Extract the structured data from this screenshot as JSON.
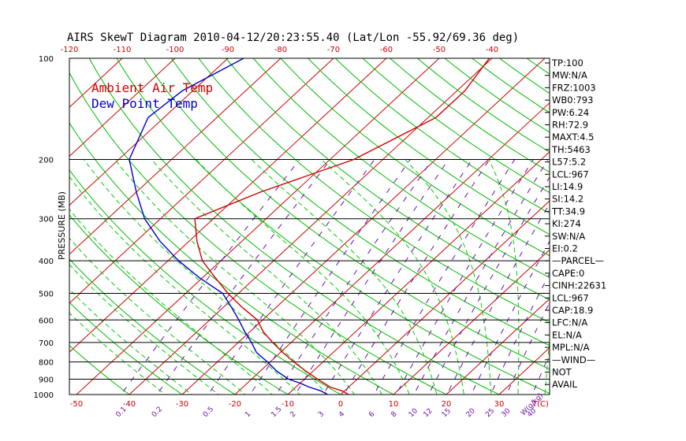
{
  "title": "AIRS SkewT Diagram 2010-04-12/20:23:55.40 (Lat/Lon -55.92/69.36 deg)",
  "ylabel": "PRESSURE (MB)",
  "legend": {
    "air": "Ambient Air Temp",
    "dew": "Dew Point Temp"
  },
  "colors": {
    "air": "#cc0000",
    "dew": "#0000cc",
    "isotherm": "#cc0000",
    "dry_adiabat": "#00bb00",
    "moist_adiabat": "#00cc00",
    "mixing_ratio": "#6a0dad",
    "isobar": "#000000"
  },
  "indices": [
    "TP:100",
    "MW:N/A",
    "FRZ:1003",
    "WB0:793",
    "PW:6.24",
    "RH:72.9",
    "MAXT:4.5",
    "TH:5463",
    "L57:5.2",
    "LCL:967",
    "LI:14.9",
    "SI:14.2",
    "TT:34.9",
    "KI:274",
    "SW:N/A",
    "EI:0.2",
    "—PARCEL—",
    "CAPE:0",
    "CINH:22631",
    "LCL:967",
    "CAP:18.9",
    "LFC:N/A",
    "EL:N/A",
    "MPL:N/A",
    "—WIND—",
    "NOT",
    "AVAIL"
  ],
  "chart_data": {
    "type": "line",
    "title": "AIRS SkewT Diagram 2010-04-12/20:23:55.40 (Lat/Lon -55.92/69.36 deg)",
    "ylabel": "PRESSURE (MB)",
    "xlabel": "T(C)",
    "mixing_ratio_unit": "W(g/kg)",
    "y_scale": "log",
    "ylim": [
      1000,
      100
    ],
    "pressure_ticks": [
      100,
      200,
      300,
      400,
      500,
      600,
      700,
      800,
      900,
      1000
    ],
    "top_temp_ticks": [
      -120,
      -110,
      -100,
      -90,
      -80,
      -70,
      -60,
      -50,
      -40
    ],
    "bottom_temp_ticks": [
      -50,
      -40,
      -30,
      -20,
      -10,
      0,
      10,
      20,
      30
    ],
    "isotherm_range": [
      -180,
      50
    ],
    "mixing_ratio_lines": [
      {
        "w": 0.1,
        "label": "0.1"
      },
      {
        "w": 0.2,
        "label": "0.2"
      },
      {
        "w": 0.5,
        "label": "0.5"
      },
      {
        "w": 1,
        "label": "1"
      },
      {
        "w": 1.5,
        "label": "1.5"
      },
      {
        "w": 2,
        "label": "2"
      },
      {
        "w": 3,
        "label": "3"
      },
      {
        "w": 4,
        "label": "4"
      },
      {
        "w": 6,
        "label": "6"
      },
      {
        "w": 8,
        "label": "8"
      },
      {
        "w": 10,
        "label": "10"
      },
      {
        "w": 12,
        "label": "12"
      },
      {
        "w": 15,
        "label": "15"
      },
      {
        "w": 20,
        "label": "20"
      },
      {
        "w": 25,
        "label": "25"
      },
      {
        "w": 30,
        "label": "30"
      },
      {
        "w": 40,
        "label": "40"
      }
    ],
    "series": [
      {
        "name": "Ambient Air Temp",
        "points": [
          {
            "p": 1000,
            "t": 1.5
          },
          {
            "p": 975,
            "t": -0.5
          },
          {
            "p": 950,
            "t": -3.5
          },
          {
            "p": 925,
            "t": -5.5
          },
          {
            "p": 900,
            "t": -7.5
          },
          {
            "p": 850,
            "t": -11.5
          },
          {
            "p": 800,
            "t": -15.5
          },
          {
            "p": 750,
            "t": -19.5
          },
          {
            "p": 700,
            "t": -23.5
          },
          {
            "p": 650,
            "t": -27.5
          },
          {
            "p": 600,
            "t": -31.0
          },
          {
            "p": 550,
            "t": -36.5
          },
          {
            "p": 500,
            "t": -42.0
          },
          {
            "p": 450,
            "t": -47.5
          },
          {
            "p": 400,
            "t": -53.5
          },
          {
            "p": 350,
            "t": -58.5
          },
          {
            "p": 300,
            "t": -63.5
          },
          {
            "p": 250,
            "t": -56.5
          },
          {
            "p": 200,
            "t": -45.5
          },
          {
            "p": 150,
            "t": -38.5
          },
          {
            "p": 125,
            "t": -38.5
          },
          {
            "p": 100,
            "t": -40.5
          }
        ]
      },
      {
        "name": "Dew Point Temp",
        "points": [
          {
            "p": 1000,
            "t": -2.5
          },
          {
            "p": 975,
            "t": -4.5
          },
          {
            "p": 950,
            "t": -7.5
          },
          {
            "p": 925,
            "t": -10.0
          },
          {
            "p": 900,
            "t": -13.0
          },
          {
            "p": 850,
            "t": -17.0
          },
          {
            "p": 800,
            "t": -20.5
          },
          {
            "p": 750,
            "t": -24.5
          },
          {
            "p": 700,
            "t": -27.5
          },
          {
            "p": 650,
            "t": -31.0
          },
          {
            "p": 600,
            "t": -34.5
          },
          {
            "p": 550,
            "t": -38.5
          },
          {
            "p": 500,
            "t": -43.0
          },
          {
            "p": 450,
            "t": -50.5
          },
          {
            "p": 400,
            "t": -58.0
          },
          {
            "p": 350,
            "t": -65.5
          },
          {
            "p": 300,
            "t": -73.0
          },
          {
            "p": 250,
            "t": -80.0
          },
          {
            "p": 200,
            "t": -88.0
          },
          {
            "p": 150,
            "t": -93.0
          },
          {
            "p": 125,
            "t": -92.0
          },
          {
            "p": 100,
            "t": -87.0
          }
        ]
      }
    ]
  }
}
